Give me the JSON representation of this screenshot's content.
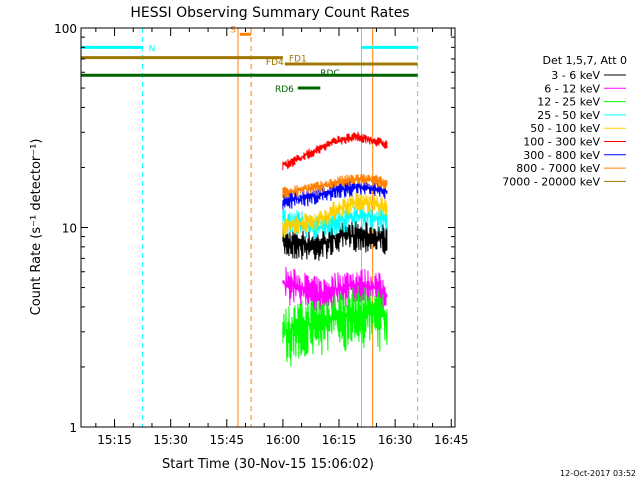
{
  "chart_data": {
    "type": "line",
    "title": "HESSI Observing Summary Count Rates",
    "xlabel": "Start Time (30-Nov-15 15:06:02)",
    "ylabel": "Count Rate (s⁻¹ detector⁻¹)",
    "yscale": "log",
    "ylim": [
      1,
      100
    ],
    "xlim": [
      "15:06:02",
      "16:46:00"
    ],
    "y_ticks": [
      "1",
      "10",
      "100"
    ],
    "x_ticks": [
      "15:15",
      "15:30",
      "15:45",
      "16:00",
      "16:15",
      "16:30",
      "16:45"
    ],
    "footer_date": "12-Oct-2017 03:52",
    "legend_header": "Det 1,5,7, Att 0",
    "legend_position": "right",
    "series": [
      {
        "name": "3 - 6 keV",
        "color": "#000000",
        "x": [
          "16:00",
          "16:05",
          "16:10",
          "16:15",
          "16:20",
          "16:25",
          "16:28"
        ],
        "values": [
          8.5,
          8.3,
          8.2,
          9.0,
          9.2,
          9.0,
          8.8
        ]
      },
      {
        "name": "6 - 12 keV",
        "color": "#ff00ff",
        "x": [
          "16:00",
          "16:05",
          "16:10",
          "16:15",
          "16:20",
          "16:25",
          "16:28"
        ],
        "values": [
          5.3,
          5.0,
          4.6,
          5.0,
          5.2,
          5.0,
          4.5
        ]
      },
      {
        "name": "12 - 25 keV",
        "color": "#00ff00",
        "x": [
          "16:00",
          "16:05",
          "16:10",
          "16:15",
          "16:20",
          "16:25",
          "16:28"
        ],
        "values": [
          3.0,
          3.2,
          3.4,
          3.6,
          3.8,
          3.7,
          3.5
        ]
      },
      {
        "name": "25 - 50 keV",
        "color": "#00ffff",
        "x": [
          "16:00",
          "16:05",
          "16:10",
          "16:15",
          "16:20",
          "16:25",
          "16:28"
        ],
        "values": [
          11.0,
          10.5,
          10.0,
          10.8,
          11.5,
          11.2,
          11.0
        ]
      },
      {
        "name": "50 - 100 keV",
        "color": "#ffd000",
        "x": [
          "16:00",
          "16:05",
          "16:10",
          "16:15",
          "16:20",
          "16:25",
          "16:28"
        ],
        "values": [
          10.0,
          10.5,
          11.0,
          12.5,
          13.5,
          13.0,
          12.5
        ]
      },
      {
        "name": "100 - 300 keV",
        "color": "#ff0000",
        "x": [
          "16:00",
          "16:02",
          "16:05",
          "16:10",
          "16:15",
          "16:20",
          "16:25",
          "16:28"
        ],
        "values": [
          20.5,
          21.0,
          22.5,
          25.0,
          27.5,
          28.5,
          27.0,
          26.0
        ]
      },
      {
        "name": "300 - 800 keV",
        "color": "#0000ff",
        "x": [
          "16:00",
          "16:05",
          "16:10",
          "16:15",
          "16:20",
          "16:25",
          "16:28"
        ],
        "values": [
          13.5,
          14.0,
          14.5,
          15.5,
          16.0,
          15.5,
          15.0
        ]
      },
      {
        "name": "800 - 7000 keV",
        "color": "#ff8000",
        "x": [
          "16:00",
          "16:05",
          "16:10",
          "16:15",
          "16:20",
          "16:25",
          "16:28"
        ],
        "values": [
          15.0,
          15.5,
          16.0,
          17.0,
          17.5,
          17.2,
          16.5
        ]
      },
      {
        "name": "7000 - 20000 keV",
        "color": "#a07800",
        "x": [],
        "values": []
      }
    ],
    "vertical_lines": [
      {
        "time": "15:06:02",
        "color": "#00ffff",
        "style": "solid"
      },
      {
        "time": "15:22:30",
        "color": "#00ffff",
        "style": "dashed"
      },
      {
        "time": "15:48:00",
        "color": "#ff8000",
        "style": "solid"
      },
      {
        "time": "15:51:30",
        "color": "#ff8000",
        "style": "dashed"
      },
      {
        "time": "16:21:00",
        "color": "#00ffff",
        "style": "solid"
      },
      {
        "time": "16:24:00",
        "color": "#ff8000",
        "style": "solid"
      },
      {
        "time": "16:36:00",
        "color": "#00ffff",
        "style": "dashed"
      }
    ],
    "flags": [
      {
        "label": "N",
        "color": "#00ffff",
        "start": "15:06:02",
        "end": "15:22:30",
        "value": 80,
        "label_side": "right"
      },
      {
        "label": "N",
        "color": "#00ffff",
        "start": "16:21:00",
        "end": "16:36:00",
        "value": 80,
        "label_side": "none"
      },
      {
        "label": "S",
        "color": "#ff8000",
        "start": "15:48:30",
        "end": "15:51:30",
        "value": 93,
        "label_side": "left"
      },
      {
        "label": "FD1",
        "color": "#a07800",
        "start": "15:06:02",
        "end": "16:00:00",
        "value": 71,
        "label_side": "right"
      },
      {
        "label": "FD4",
        "color": "#a07800",
        "start": "16:00:30",
        "end": "16:36:00",
        "value": 66,
        "label_side": "left"
      },
      {
        "label": "RDC",
        "color": "#006400",
        "start": "15:06:02",
        "end": "16:36:00",
        "value": 58,
        "label_side": "overlay"
      },
      {
        "label": "RD6",
        "color": "#006400",
        "start": "16:04:00",
        "end": "16:10:00",
        "value": 50,
        "label_side": "left"
      }
    ]
  }
}
